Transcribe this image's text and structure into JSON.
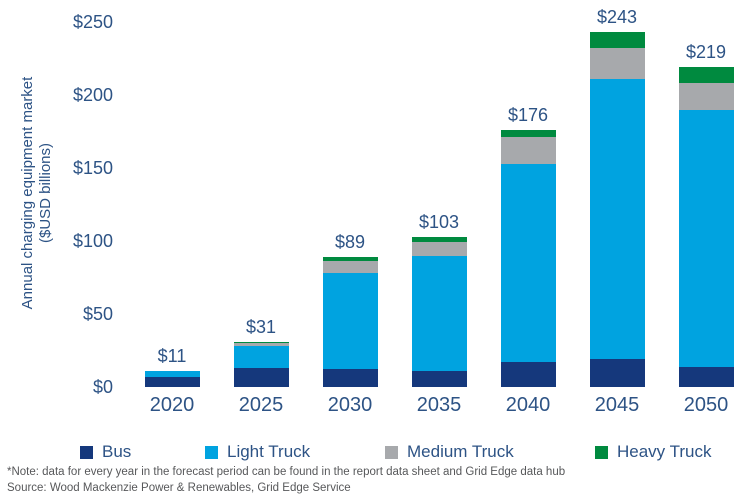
{
  "chart_data": {
    "type": "bar",
    "stacked": true,
    "ylabel_line1": "Annual charging equipment market",
    "ylabel_line2": "($USD billions)",
    "categories": [
      "2020",
      "2025",
      "2030",
      "2035",
      "2040",
      "2045",
      "2050"
    ],
    "totals": [
      11,
      31,
      89,
      103,
      176,
      243,
      219
    ],
    "total_labels": [
      "$11",
      "$31",
      "$89",
      "$103",
      "$176",
      "$243",
      "$219"
    ],
    "series": [
      {
        "name": "Bus",
        "color": "#15387c",
        "values": [
          7,
          13,
          12,
          11,
          17,
          19,
          14
        ]
      },
      {
        "name": "Light Truck",
        "color": "#00a3e0",
        "values": [
          4,
          15,
          66,
          79,
          136,
          192,
          176
        ]
      },
      {
        "name": "Medium Truck",
        "color": "#a7a9ac",
        "values": [
          0,
          2,
          8,
          9,
          18,
          21,
          18
        ]
      },
      {
        "name": "Heavy Truck",
        "color": "#008a3f",
        "values": [
          0,
          1,
          3,
          4,
          5,
          11,
          11
        ]
      }
    ],
    "y_axis": {
      "tick_labels": [
        "$0",
        "$50",
        "$100",
        "$150",
        "$200",
        "$250"
      ],
      "tick_values": [
        0,
        50,
        100,
        150,
        200,
        250
      ],
      "min": 0,
      "max": 250
    },
    "grid": false,
    "legend_position": "bottom"
  },
  "footer": {
    "note": "*Note: data for every year in the forecast period can be found in the report data sheet and Grid Edge data hub",
    "source": "Source: Wood Mackenzie Power & Renewables, Grid Edge Service"
  },
  "colors": {
    "text_navy": "#2d5385",
    "footnote_gray": "#57585a",
    "background": "#ffffff"
  }
}
